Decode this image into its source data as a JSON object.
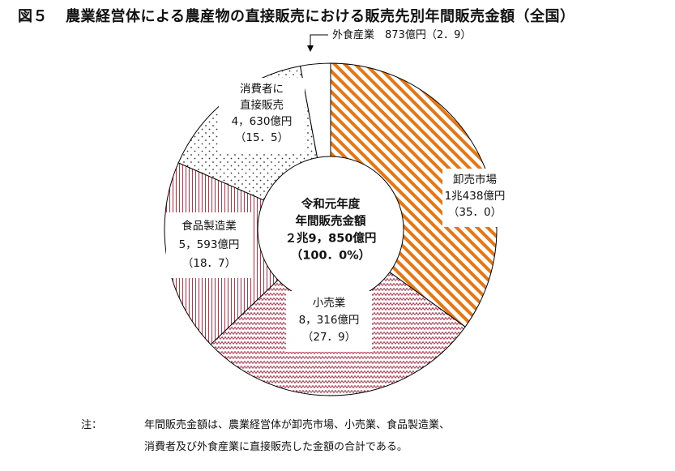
{
  "title": {
    "figure_no": "図５",
    "text": "農業経営体による農産物の直接販売における販売先別年間販売金額（全国）"
  },
  "chart_data": {
    "type": "pie",
    "variant": "donut",
    "center_label": [
      "令和元年度",
      "年間販売金額",
      "２兆9，850億円",
      "（100．0%）"
    ],
    "total": 29850,
    "total_text": "２兆9，850億円",
    "slices": [
      {
        "name": "卸売市場",
        "label_lines": [
          "卸売市場",
          "1兆438億円",
          "（35．0）"
        ],
        "value": 10438,
        "percent": 35.0,
        "color": "#e8750f",
        "pattern": "diagonal-stripes"
      },
      {
        "name": "小売業",
        "label_lines": [
          "小売業",
          "8，316億円",
          "（27．9）"
        ],
        "value": 8316,
        "percent": 27.9,
        "color": "#b8324a",
        "pattern": "zigzag"
      },
      {
        "name": "食品製造業",
        "label_lines": [
          "食品製造業",
          "5，593億円",
          "（18．7）"
        ],
        "value": 5593,
        "percent": 18.7,
        "color": "#d7283c",
        "pattern": "vertical-lines"
      },
      {
        "name": "消費者に直接販売",
        "label_lines": [
          "消費者に",
          "直接販売",
          "4，630億円",
          "（15．5）"
        ],
        "value": 4630,
        "percent": 15.5,
        "color": "#333333",
        "pattern": "dots"
      },
      {
        "name": "外食産業",
        "label_lines": [
          "外食産業　873億円（2．9）"
        ],
        "value": 873,
        "percent": 2.9,
        "color": "#ffffff",
        "pattern": "none"
      }
    ]
  },
  "note": {
    "label": "注：",
    "line1": "年間販売金額は、農業経営体が卸売市場、小売業、食品製造業、",
    "line2": "消費者及び外食産業に直接販売した金額の合計である。"
  }
}
